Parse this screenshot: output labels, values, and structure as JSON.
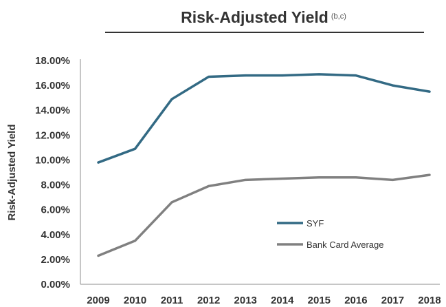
{
  "chart_data": {
    "type": "line",
    "title": "Risk-Adjusted Yield",
    "title_superscript": "(b,c)",
    "xlabel": "",
    "ylabel": "Risk-Adjusted Yield",
    "x": [
      "2009",
      "2010",
      "2011",
      "2012",
      "2013",
      "2014",
      "2015",
      "2016",
      "2017",
      "2018"
    ],
    "ylim": [
      0,
      18
    ],
    "yticks": [
      "0.00%",
      "2.00%",
      "4.00%",
      "6.00%",
      "8.00%",
      "10.00%",
      "12.00%",
      "14.00%",
      "16.00%",
      "18.00%"
    ],
    "y_unit": "%",
    "grid": false,
    "legend_position": "bottom-right",
    "series": [
      {
        "name": "SYF",
        "color": "#336a84",
        "values": [
          9.8,
          10.9,
          14.9,
          16.7,
          16.8,
          16.8,
          16.9,
          16.8,
          16.0,
          15.5
        ]
      },
      {
        "name": "Bank Card Average",
        "color": "#808080",
        "values": [
          2.3,
          3.5,
          6.6,
          7.9,
          8.4,
          8.5,
          8.6,
          8.6,
          8.4,
          8.8
        ]
      }
    ]
  }
}
